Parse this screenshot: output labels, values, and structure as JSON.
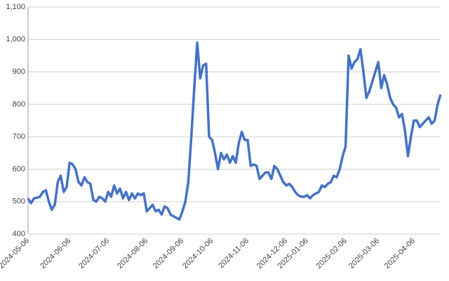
{
  "chart_data": {
    "type": "line",
    "color": "#4472c4",
    "grid": true,
    "categories": [
      "2024-05-06",
      null,
      null,
      null,
      null,
      null,
      null,
      null,
      null,
      null,
      null,
      null,
      null,
      null,
      "2024-06-06",
      null,
      null,
      null,
      null,
      null,
      null,
      null,
      null,
      null,
      null,
      null,
      null,
      "2024-07-06",
      null,
      null,
      null,
      null,
      null,
      null,
      null,
      null,
      null,
      null,
      null,
      null,
      "2024-08-06",
      null,
      null,
      null,
      null,
      null,
      null,
      null,
      null,
      null,
      null,
      null,
      "2024-09-06",
      null,
      null,
      null,
      null,
      null,
      null,
      null,
      null,
      null,
      "2024-10-06",
      null,
      null,
      null,
      null,
      null,
      null,
      null,
      null,
      null,
      null,
      null,
      "2024-11-06",
      null,
      null,
      null,
      null,
      null,
      null,
      null,
      null,
      null,
      null,
      null,
      null,
      "2024-12-06",
      null,
      null,
      null,
      null,
      null,
      null,
      "2025-01-06",
      null,
      null,
      null,
      null,
      null,
      null,
      null,
      null,
      null,
      null,
      null,
      null,
      "2025-02-06",
      null,
      null,
      null,
      null,
      null,
      null,
      null,
      null,
      null,
      null,
      "2025-03-06",
      null,
      null,
      null,
      null,
      null,
      null,
      null,
      null,
      null,
      null,
      null,
      "2025-04-06",
      null,
      null,
      null,
      null,
      null,
      null,
      null,
      null,
      null
    ],
    "values": [
      510,
      495,
      510,
      512,
      515,
      530,
      535,
      500,
      475,
      490,
      560,
      580,
      530,
      545,
      620,
      615,
      600,
      560,
      550,
      575,
      560,
      555,
      505,
      500,
      515,
      510,
      500,
      530,
      515,
      550,
      525,
      540,
      510,
      530,
      505,
      525,
      510,
      525,
      520,
      525,
      470,
      480,
      490,
      470,
      475,
      460,
      485,
      480,
      460,
      455,
      450,
      445,
      470,
      500,
      560,
      700,
      850,
      990,
      880,
      920,
      925,
      700,
      690,
      650,
      600,
      650,
      630,
      645,
      620,
      640,
      620,
      680,
      715,
      690,
      690,
      610,
      615,
      610,
      570,
      580,
      590,
      590,
      570,
      610,
      600,
      580,
      560,
      550,
      555,
      545,
      530,
      520,
      515,
      515,
      520,
      510,
      520,
      525,
      530,
      550,
      545,
      555,
      560,
      580,
      575,
      600,
      640,
      670,
      950,
      910,
      930,
      940,
      970,
      900,
      820,
      840,
      870,
      900,
      930,
      850,
      890,
      860,
      820,
      800,
      790,
      760,
      770,
      720,
      640,
      700,
      750,
      750,
      730,
      740,
      750,
      760,
      740,
      750,
      800,
      830
    ],
    "ylim": [
      400,
      1100
    ],
    "yticks": [
      400,
      500,
      600,
      700,
      800,
      900,
      {
        "value": 1000,
        "label": "1,000"
      },
      {
        "value": 1100,
        "label": "1,100"
      }
    ]
  }
}
